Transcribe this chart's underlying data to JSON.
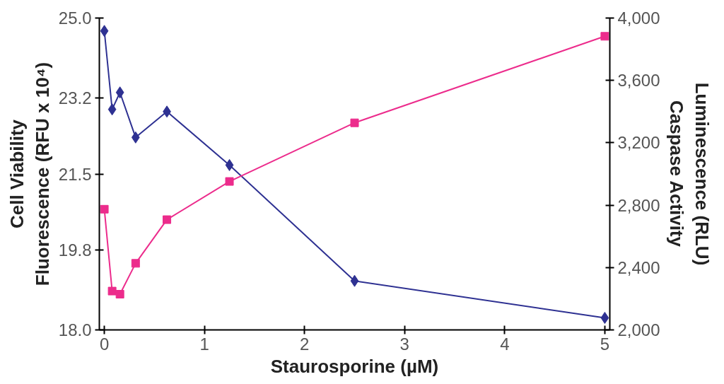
{
  "chart_data": {
    "type": "line",
    "xlabel": "Staurosporine (µM)",
    "ylabel": "Cell Viability\nFluorescence (RFU x 10⁴)",
    "y2label": "Luminescence (RLU)\nCaspase Activity",
    "x": [
      0,
      0.078,
      0.156,
      0.3125,
      0.625,
      1.25,
      2.5,
      5
    ],
    "series": [
      {
        "color": "#2e3192",
        "marker": "diamond",
        "values": [
          24.71,
          22.95,
          23.33,
          22.32,
          22.9,
          21.7,
          19.1,
          18.27
        ]
      },
      {
        "color": "#ec2c8c",
        "marker": "square",
        "axis": "y2",
        "values": [
          2774,
          2249,
          2229,
          2427,
          2707,
          2952,
          3328,
          3883
        ]
      }
    ],
    "xlim": [
      -0.05,
      5.05
    ],
    "xticks": [
      0,
      1,
      2,
      3,
      4,
      5
    ],
    "ylim": [
      18.0,
      25.0
    ],
    "yticks": [
      {
        "value": 18,
        "label": "18.0"
      },
      {
        "value": 19.8,
        "label": "19.8"
      },
      {
        "value": 21.5,
        "label": "21.5"
      },
      {
        "value": 23.2,
        "label": "23.2"
      },
      {
        "value": 25,
        "label": "25.0"
      }
    ],
    "y2lim": [
      2000,
      4000
    ],
    "y2ticks": [
      {
        "value": 2000,
        "label": "2,000"
      },
      {
        "value": 2400,
        "label": "2,400"
      },
      {
        "value": 2800,
        "label": "2,800"
      },
      {
        "value": 3200,
        "label": "3,200"
      },
      {
        "value": 3600,
        "label": "3,600"
      },
      {
        "value": 4000,
        "label": "4,000"
      }
    ],
    "grid": false
  }
}
